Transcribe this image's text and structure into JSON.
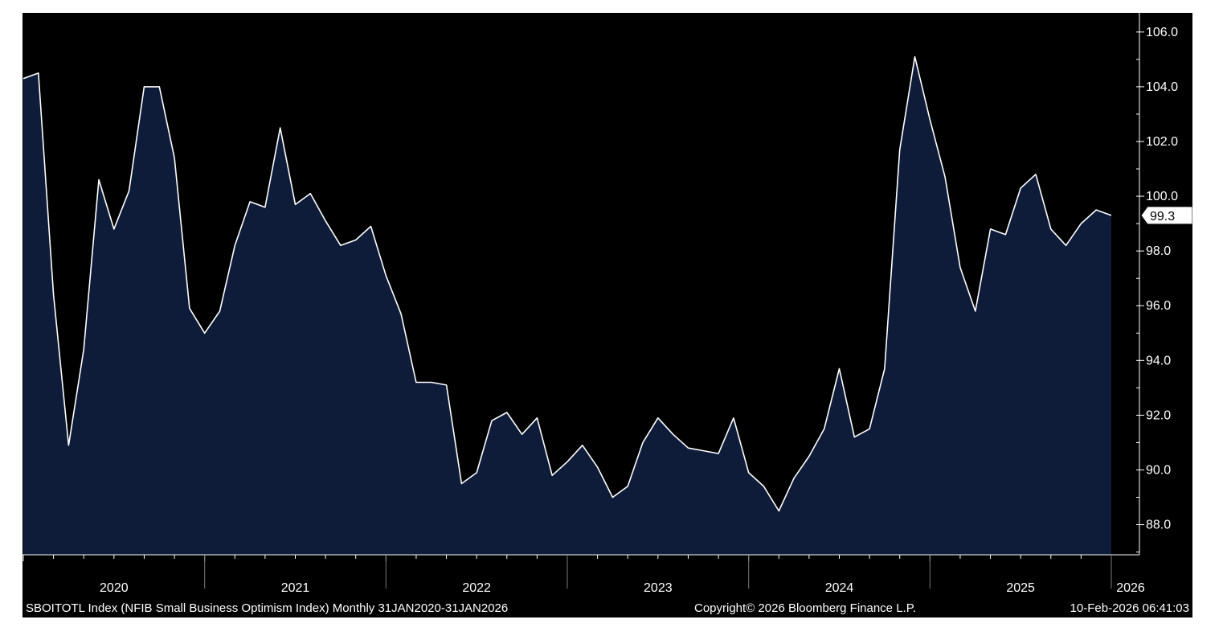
{
  "colors": {
    "background": "#000000",
    "area_fill": "#0e1c3a",
    "line": "#ffffff",
    "axis": "#ffffff",
    "last_value_box_bg": "#ffffff",
    "last_value_box_text": "#000000"
  },
  "footer": {
    "description": "SBOITOTL Index (NFIB Small Business Optimism Index) Monthly 31JAN2020-31JAN2026",
    "copyright": "Copyright© 2026 Bloomberg Finance L.P.",
    "timestamp": "10-Feb-2026 06:41:03"
  },
  "chart_data": {
    "type": "area",
    "title": "",
    "xlabel": "",
    "ylabel": "",
    "y_axis_position": "right",
    "ylim": [
      86.9,
      106.7
    ],
    "y_ticks": [
      88.0,
      90.0,
      92.0,
      94.0,
      96.0,
      98.0,
      100.0,
      102.0,
      104.0,
      106.0
    ],
    "y_tick_labels": [
      "88.0",
      "90.0",
      "92.0",
      "94.0",
      "96.0",
      "98.0",
      "100.0",
      "102.0",
      "104.0",
      "106.0"
    ],
    "x_start": "2020-01",
    "x_end": "2026-01",
    "year_labels": [
      "2020",
      "2021",
      "2022",
      "2023",
      "2024",
      "2025",
      "2026"
    ],
    "last_value_label": "99.3",
    "grid": false,
    "series": [
      {
        "x": [
          "2020-01",
          "2020-02",
          "2020-03",
          "2020-04",
          "2020-05",
          "2020-06",
          "2020-07",
          "2020-08",
          "2020-09",
          "2020-10",
          "2020-11",
          "2020-12",
          "2021-01",
          "2021-02",
          "2021-03",
          "2021-04",
          "2021-05",
          "2021-06",
          "2021-07",
          "2021-08",
          "2021-09",
          "2021-10",
          "2021-11",
          "2021-12",
          "2022-01",
          "2022-02",
          "2022-03",
          "2022-04",
          "2022-05",
          "2022-06",
          "2022-07",
          "2022-08",
          "2022-09",
          "2022-10",
          "2022-11",
          "2022-12",
          "2023-01",
          "2023-02",
          "2023-03",
          "2023-04",
          "2023-05",
          "2023-06",
          "2023-07",
          "2023-08",
          "2023-09",
          "2023-10",
          "2023-11",
          "2023-12",
          "2024-01",
          "2024-02",
          "2024-03",
          "2024-04",
          "2024-05",
          "2024-06",
          "2024-07",
          "2024-08",
          "2024-09",
          "2024-10",
          "2024-11",
          "2024-12",
          "2025-01",
          "2025-02",
          "2025-03",
          "2025-04",
          "2025-05",
          "2025-06",
          "2025-07",
          "2025-08",
          "2025-09",
          "2025-10",
          "2025-11",
          "2025-12",
          "2026-01"
        ],
        "values": [
          104.3,
          104.5,
          96.4,
          90.9,
          94.4,
          100.6,
          98.8,
          100.2,
          104.0,
          104.0,
          101.4,
          95.9,
          95.0,
          95.8,
          98.2,
          99.8,
          99.6,
          102.5,
          99.7,
          100.1,
          99.1,
          98.2,
          98.4,
          98.9,
          97.1,
          95.7,
          93.2,
          93.2,
          93.1,
          89.5,
          89.9,
          91.8,
          92.1,
          91.3,
          91.9,
          89.8,
          90.3,
          90.9,
          90.1,
          89.0,
          89.4,
          91.0,
          91.9,
          91.3,
          90.8,
          90.7,
          90.6,
          91.9,
          89.9,
          89.4,
          88.5,
          89.7,
          90.5,
          91.5,
          93.7,
          91.2,
          91.5,
          93.7,
          101.7,
          105.1,
          102.8,
          100.7,
          97.4,
          95.8,
          98.8,
          98.6,
          100.3,
          100.8,
          98.8,
          98.2,
          99.0,
          99.5,
          99.3
        ]
      }
    ]
  }
}
